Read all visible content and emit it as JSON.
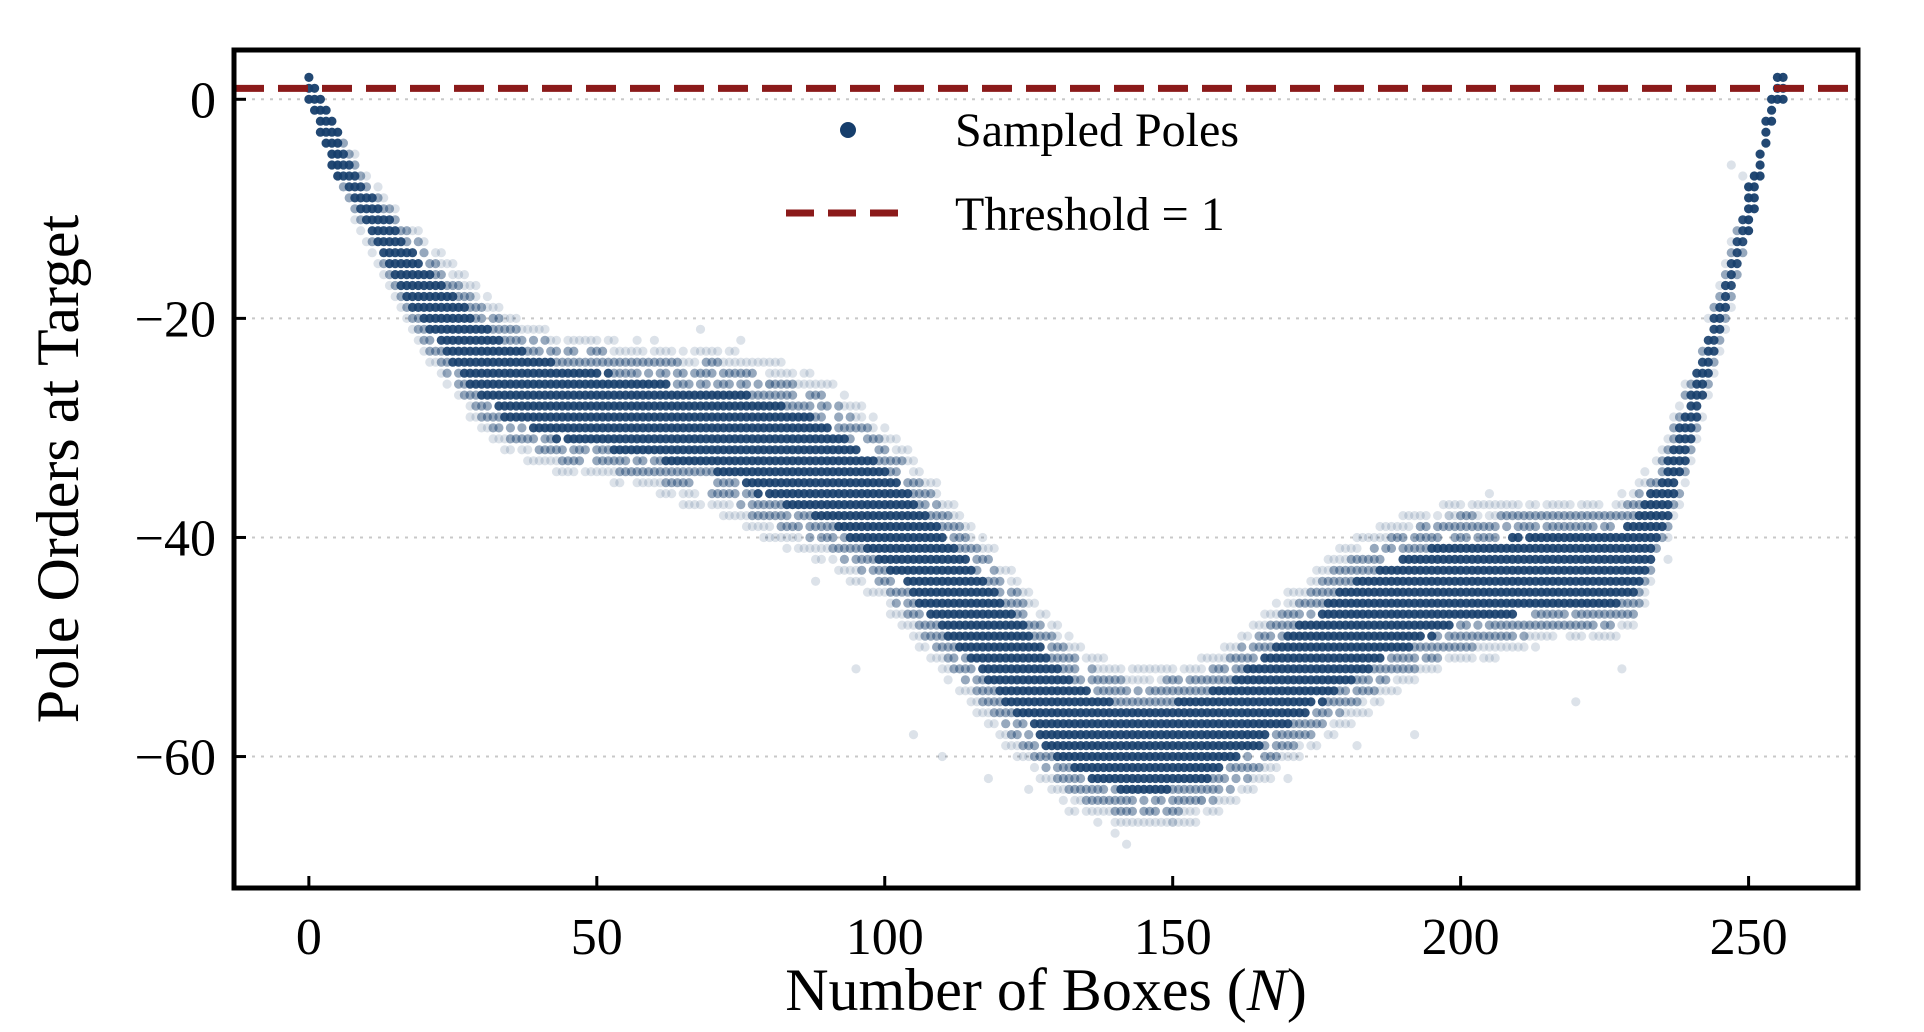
{
  "chart_data": {
    "type": "scatter",
    "title": "",
    "xlabel": "Number of Boxes (",
    "xlabel_var": "N",
    "xlabel_end": ")",
    "ylabel": "Pole Orders at Target",
    "xlim": [
      -13,
      269
    ],
    "ylim": [
      -72,
      4.5
    ],
    "x_ticks": [
      0,
      50,
      100,
      150,
      200,
      250
    ],
    "x_tick_labels": [
      "0",
      "50",
      "100",
      "150",
      "200",
      "250"
    ],
    "y_ticks": [
      0,
      -20,
      -40,
      -60
    ],
    "y_tick_labels": [
      "0",
      "−20",
      "−40",
      "−60"
    ],
    "grid": "horizontal-dotted",
    "legend_position": "top-center",
    "series": [
      {
        "name": "Sampled Poles",
        "kind": "scatter",
        "color": "#163e6c",
        "band_center": [
          [
            0,
            1
          ],
          [
            5,
            -5
          ],
          [
            10,
            -10
          ],
          [
            15,
            -14
          ],
          [
            20,
            -18
          ],
          [
            25,
            -21
          ],
          [
            30,
            -24
          ],
          [
            35,
            -26
          ],
          [
            40,
            -27
          ],
          [
            45,
            -28
          ],
          [
            50,
            -28
          ],
          [
            55,
            -29
          ],
          [
            60,
            -29
          ],
          [
            65,
            -30
          ],
          [
            70,
            -30
          ],
          [
            75,
            -31
          ],
          [
            80,
            -32
          ],
          [
            85,
            -33
          ],
          [
            90,
            -34
          ],
          [
            95,
            -36
          ],
          [
            100,
            -38
          ],
          [
            105,
            -41
          ],
          [
            110,
            -44
          ],
          [
            115,
            -47
          ],
          [
            120,
            -50
          ],
          [
            125,
            -53
          ],
          [
            130,
            -56
          ],
          [
            135,
            -58
          ],
          [
            140,
            -59
          ],
          [
            145,
            -59.5
          ],
          [
            150,
            -59
          ],
          [
            155,
            -58.5
          ],
          [
            160,
            -57
          ],
          [
            165,
            -55
          ],
          [
            170,
            -53
          ],
          [
            175,
            -51
          ],
          [
            180,
            -49
          ],
          [
            185,
            -47.5
          ],
          [
            190,
            -46
          ],
          [
            195,
            -45
          ],
          [
            200,
            -44
          ],
          [
            205,
            -44
          ],
          [
            210,
            -43.5
          ],
          [
            215,
            -43
          ],
          [
            220,
            -43
          ],
          [
            225,
            -43
          ],
          [
            230,
            -42
          ],
          [
            235,
            -37
          ],
          [
            240,
            -29
          ],
          [
            245,
            -20
          ],
          [
            250,
            -10
          ],
          [
            255,
            1
          ]
        ],
        "band_spread": [
          [
            0,
            0
          ],
          [
            5,
            1
          ],
          [
            10,
            2
          ],
          [
            20,
            4
          ],
          [
            30,
            5
          ],
          [
            50,
            5
          ],
          [
            70,
            6
          ],
          [
            80,
            7
          ],
          [
            90,
            7
          ],
          [
            100,
            7
          ],
          [
            120,
            7
          ],
          [
            140,
            6
          ],
          [
            150,
            6
          ],
          [
            160,
            6
          ],
          [
            180,
            7
          ],
          [
            200,
            6
          ],
          [
            220,
            5
          ],
          [
            230,
            5
          ],
          [
            235,
            4
          ],
          [
            240,
            3
          ],
          [
            245,
            2
          ],
          [
            250,
            1
          ],
          [
            255,
            0
          ]
        ],
        "outliers": [
          [
            57,
            -22
          ],
          [
            68,
            -21
          ],
          [
            75,
            -22
          ],
          [
            80,
            -26
          ],
          [
            88,
            -44
          ],
          [
            95,
            -52
          ],
          [
            105,
            -58
          ],
          [
            110,
            -60
          ],
          [
            118,
            -62
          ],
          [
            125,
            -63
          ],
          [
            132,
            -65
          ],
          [
            140,
            -67
          ],
          [
            142,
            -68
          ],
          [
            150,
            -66
          ],
          [
            155,
            -64
          ],
          [
            170,
            -62
          ],
          [
            182,
            -59
          ],
          [
            192,
            -58
          ],
          [
            198,
            -38
          ],
          [
            205,
            -36
          ],
          [
            210,
            -37
          ],
          [
            220,
            -55
          ],
          [
            228,
            -52
          ],
          [
            236,
            -42
          ],
          [
            247,
            -6
          ],
          [
            249,
            -7
          ]
        ]
      },
      {
        "name": "Threshold = 1",
        "kind": "hline",
        "y": 1,
        "color": "#8b1a1a"
      }
    ]
  }
}
